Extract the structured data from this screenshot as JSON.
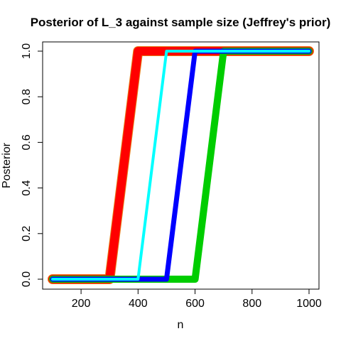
{
  "chart_data": {
    "type": "line",
    "title": "Posterior of L_3 against sample size (Jeffrey's prior)",
    "xlabel": "n",
    "ylabel": "Posterior",
    "xlim": [
      100,
      1000
    ],
    "ylim": [
      0,
      1
    ],
    "x_ticks": [
      200,
      400,
      600,
      800,
      1000
    ],
    "y_ticks": [
      0.0,
      0.2,
      0.4,
      0.6,
      0.8,
      1.0
    ],
    "x_tick_labels": [
      "200",
      "400",
      "600",
      "800",
      "1000"
    ],
    "y_tick_labels": [
      "0.0",
      "0.2",
      "0.4",
      "0.6",
      "0.8",
      "1.0"
    ],
    "grid": false,
    "series": [
      {
        "color": "#e6801a",
        "linewidth": 14,
        "x": [
          100,
          200,
          300,
          400,
          500,
          600,
          700,
          800,
          900,
          1000
        ],
        "values": [
          0,
          0,
          0,
          1,
          1,
          1,
          1,
          1,
          1,
          1
        ]
      },
      {
        "color": "#ff0000",
        "linewidth": 12,
        "x": [
          100,
          200,
          300,
          400,
          500,
          600,
          700,
          800,
          900,
          1000
        ],
        "values": [
          0,
          0,
          0,
          1,
          1,
          1,
          1,
          1,
          1,
          1
        ]
      },
      {
        "color": "#00cd00",
        "linewidth": 10,
        "x": [
          100,
          200,
          300,
          400,
          500,
          600,
          700,
          800,
          900,
          1000
        ],
        "values": [
          0,
          0,
          0,
          0,
          0,
          0,
          1,
          1,
          1,
          1
        ]
      },
      {
        "color": "#0000ff",
        "linewidth": 7,
        "x": [
          100,
          200,
          300,
          400,
          500,
          600,
          700,
          800,
          900,
          1000
        ],
        "values": [
          0,
          0,
          0,
          0,
          0,
          1,
          1,
          1,
          1,
          1
        ]
      },
      {
        "color": "#00ffff",
        "linewidth": 4,
        "x": [
          100,
          200,
          300,
          400,
          500,
          600,
          700,
          800,
          900,
          1000
        ],
        "values": [
          0,
          0,
          0,
          0,
          1,
          1,
          1,
          1,
          1,
          1
        ]
      }
    ]
  }
}
